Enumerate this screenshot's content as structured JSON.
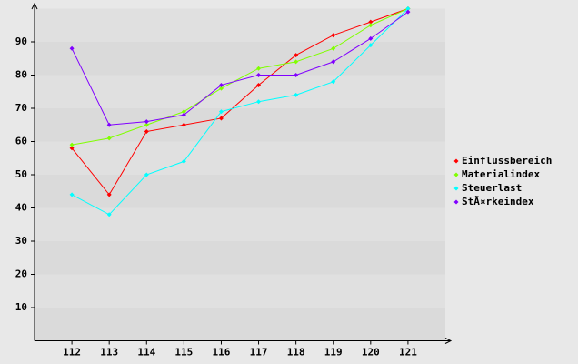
{
  "chart_data": {
    "type": "line",
    "categories": [
      "112",
      "113",
      "114",
      "115",
      "116",
      "117",
      "118",
      "119",
      "120",
      "121"
    ],
    "series": [
      {
        "name": "Einflussbereich",
        "color": "#ff0000",
        "values": [
          58,
          44,
          63,
          65,
          67,
          77,
          86,
          92,
          96,
          100
        ]
      },
      {
        "name": "Materialindex",
        "color": "#80ff00",
        "values": [
          59,
          61,
          65,
          69,
          76,
          82,
          84,
          88,
          95,
          100
        ]
      },
      {
        "name": "Steuerlast",
        "color": "#00ffff",
        "values": [
          44,
          38,
          50,
          54,
          69,
          72,
          74,
          78,
          89,
          100
        ]
      },
      {
        "name": "StÃ¤rkeindex",
        "color": "#8000ff",
        "values": [
          88,
          65,
          66,
          68,
          77,
          80,
          80,
          84,
          91,
          99
        ]
      }
    ],
    "ylim": [
      0,
      100
    ],
    "yticks": [
      10,
      20,
      30,
      40,
      50,
      60,
      70,
      80,
      90
    ],
    "grid": true,
    "legend": "right"
  }
}
